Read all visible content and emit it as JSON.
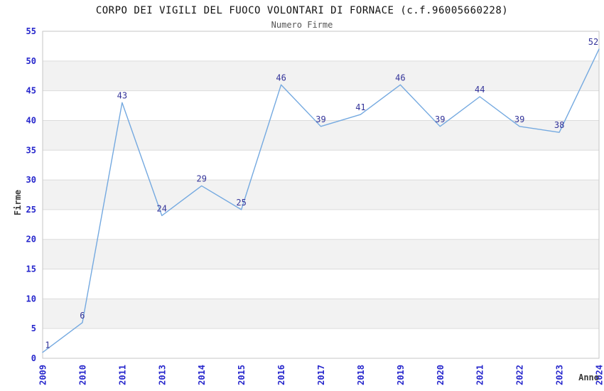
{
  "chart_data": {
    "type": "line",
    "title": "CORPO DEI VIGILI DEL FUOCO VOLONTARI DI FORNACE (c.f.96005660228)",
    "subtitle": "Numero Firme",
    "xlabel": "Anno",
    "ylabel": "Firme",
    "categories": [
      "2009",
      "2010",
      "2011",
      "2013",
      "2014",
      "2015",
      "2016",
      "2017",
      "2018",
      "2019",
      "2020",
      "2021",
      "2022",
      "2023",
      "2024"
    ],
    "values": [
      1,
      6,
      43,
      24,
      29,
      25,
      46,
      39,
      41,
      46,
      39,
      44,
      39,
      38,
      52
    ],
    "ylim": [
      0,
      55
    ],
    "ytick_step": 5,
    "grid": true,
    "show_point_labels": true,
    "legend": "none",
    "colors": {
      "line": "#74a9e0",
      "point_label": "#333399",
      "tick_label": "#2626cc",
      "band": "#f2f2f2",
      "gridline": "#dcdcdc",
      "border": "#c6c6c6",
      "title": "#111111",
      "subtitle": "#555555",
      "axis_label": "#3a3a3a",
      "background": "#ffffff"
    }
  }
}
